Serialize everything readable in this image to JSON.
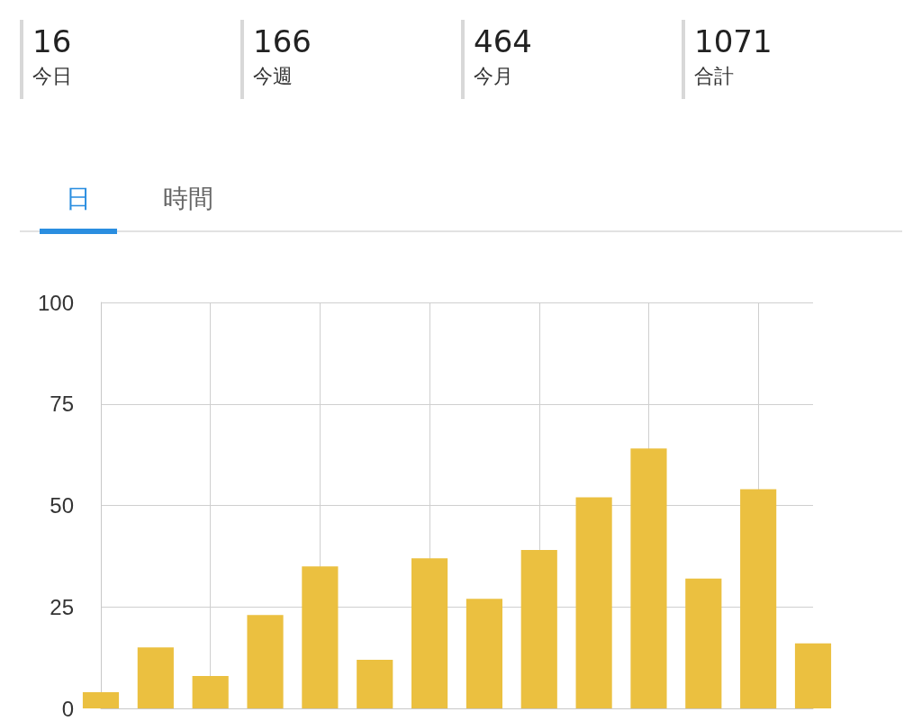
{
  "chart_data": [
    {
      "type": "other",
      "annotations": [
        "16",
        "今日",
        "166",
        "今週",
        "464",
        "今月",
        "1071",
        "合計",
        "日",
        "時間"
      ]
    },
    {
      "type": "bar",
      "categories": [
        null,
        null,
        null,
        null,
        null,
        null,
        null,
        null,
        null,
        null,
        null,
        null,
        null,
        null
      ],
      "values": [
        4,
        15,
        8,
        23,
        35,
        12,
        37,
        27,
        39,
        52,
        64,
        32,
        54,
        16
      ],
      "color": "#ebc040",
      "ylim": [
        0,
        100
      ],
      "yticks": [
        0,
        25,
        50,
        75,
        100
      ],
      "grid": true,
      "tick_labels": "y"
    }
  ]
}
